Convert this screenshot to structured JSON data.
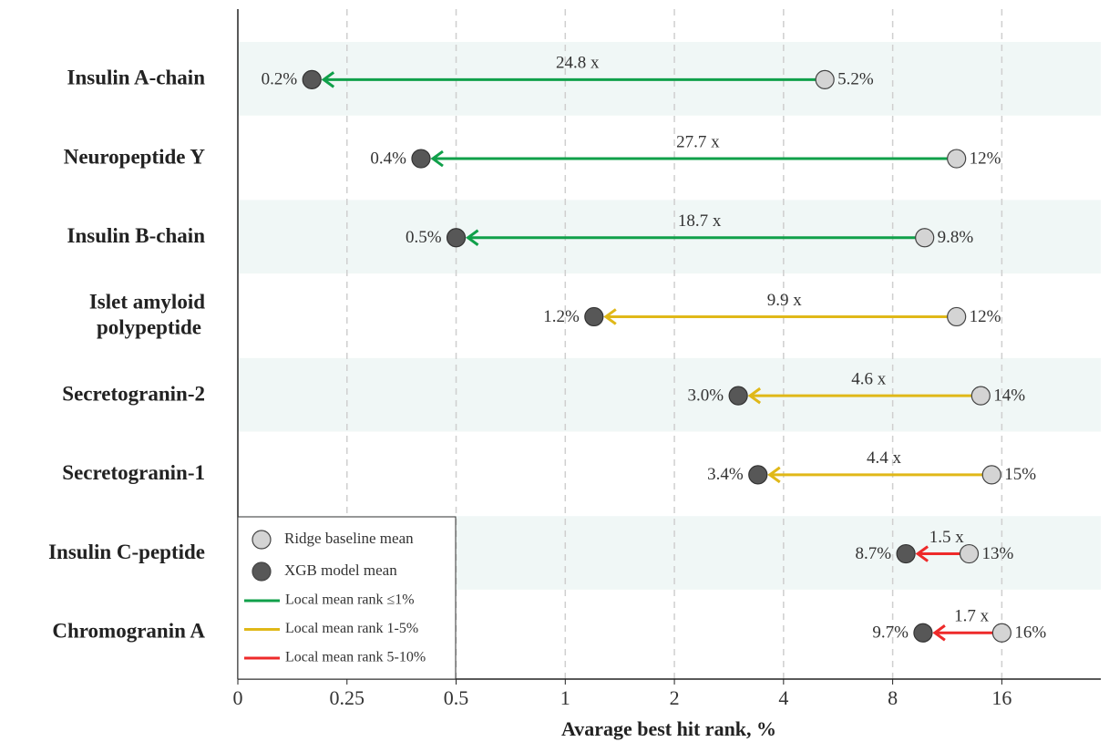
{
  "chart_data": {
    "type": "arrow-dumbbell",
    "x_label": "Avarage best hit rank, %",
    "categories": [
      "Insulin A-chain",
      "Neuropeptide Y",
      "Insulin B-chain",
      "Islet amyloid\npolypeptide",
      "Secretogranin-2",
      "Secretogranin-1",
      "Insulin C-peptide",
      "Chromogranin A"
    ],
    "series": [
      {
        "name": "Ridge baseline mean",
        "color": "#d4d4d4",
        "values": [
          5.2,
          12,
          9.8,
          12,
          14,
          15,
          13,
          16
        ],
        "value_labels": [
          "5.2%",
          "12%",
          "9.8%",
          "12%",
          "14%",
          "15%",
          "13%",
          "16%"
        ]
      },
      {
        "name": "XGB model mean",
        "color": "#575757",
        "values": [
          0.2,
          0.4,
          0.5,
          1.2,
          3.0,
          3.4,
          8.7,
          9.7
        ],
        "value_labels": [
          "0.2%",
          "0.4%",
          "0.5%",
          "1.2%",
          "3.0%",
          "3.4%",
          "8.7%",
          "9.7%"
        ]
      }
    ],
    "fold_changes": {
      "values": [
        24.8,
        27.7,
        18.7,
        9.9,
        4.6,
        4.4,
        1.5,
        1.7
      ],
      "value_labels": [
        "24.8 x",
        "27.7 x",
        "18.7 x",
        "9.9 x",
        "4.6 x",
        "4.4 x",
        "1.5 x",
        "1.7 x"
      ]
    },
    "rank_groups": [
      {
        "name": "Local mean rank ≤1%",
        "color": "#10a04a"
      },
      {
        "name": "Local mean rank 1-5%",
        "color": "#e0b818"
      },
      {
        "name": "Local mean rank 5-10%",
        "color": "#ee2a2a"
      }
    ],
    "row_group": [
      0,
      0,
      0,
      1,
      1,
      1,
      2,
      2
    ],
    "x_scale": "log2",
    "xlim": [
      0.125,
      30
    ],
    "xticks": [
      {
        "value": 0.125,
        "label": "0"
      },
      0.25,
      0.5,
      1,
      2,
      4,
      8,
      16
    ],
    "grid": true,
    "band_color": "#f0f7f6",
    "legend_position": "lower left"
  }
}
